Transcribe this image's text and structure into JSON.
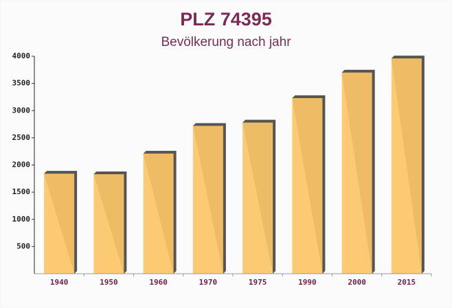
{
  "chart_data": {
    "type": "bar",
    "title": "PLZ 74395",
    "subtitle": "Bevölkerung nach jahr",
    "categories": [
      "1940",
      "1950",
      "1960",
      "1970",
      "1975",
      "1990",
      "2000",
      "2015"
    ],
    "values": [
      1840,
      1830,
      2210,
      2720,
      2780,
      3230,
      3700,
      3960
    ],
    "color": "#fdc668",
    "ylim": [
      0,
      4000
    ],
    "yticks": [
      500,
      1000,
      1500,
      2000,
      2500,
      3000,
      3500,
      4000
    ],
    "grid": false
  }
}
